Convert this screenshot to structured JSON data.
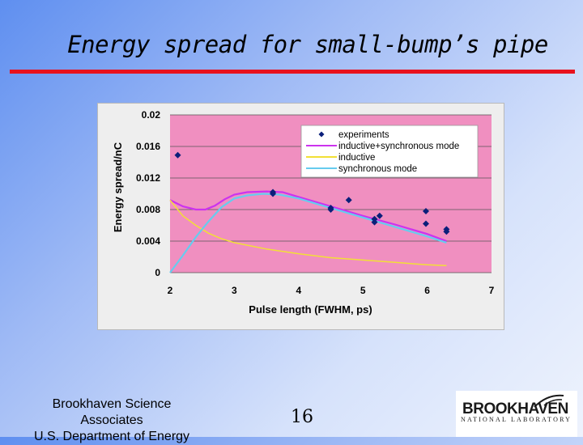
{
  "slide": {
    "title": "Energy spread for small-bump’s pipe",
    "footer_line1": "Brookhaven Science",
    "footer_line2": "Associates",
    "footer_line3": "U.S. Department of Energy",
    "page_number": "16",
    "logo_main": "BROOKHAVEN",
    "logo_sub": "NATIONAL LABORATORY"
  },
  "colors": {
    "title_rule": "#e8121e",
    "plot_background": "#f08fc0",
    "experiments": "#0b1f7a",
    "inductive_synchronous": "#cc33ee",
    "inductive": "#f2e035",
    "synchronous": "#66ccee"
  },
  "chart_data": {
    "type": "scatter",
    "title": "",
    "xlabel": "Pulse length (FWHM, ps)",
    "ylabel": "Energy spread/nC",
    "xlim": [
      2,
      7
    ],
    "ylim": [
      0,
      0.02
    ],
    "x_ticks": [
      "2",
      "3",
      "4",
      "5",
      "6",
      "7"
    ],
    "y_ticks": [
      "0",
      "0.004",
      "0.008",
      "0.012",
      "0.016",
      "0.02"
    ],
    "grid": "horizontal",
    "legend_position": "top-right",
    "series": [
      {
        "name": "experiments",
        "kind": "markers",
        "color": "#0b1f7a",
        "points": [
          [
            2.12,
            0.0149
          ],
          [
            3.6,
            0.0102
          ],
          [
            3.6,
            0.01
          ],
          [
            4.5,
            0.0082
          ],
          [
            4.5,
            0.008
          ],
          [
            4.78,
            0.0092
          ],
          [
            5.18,
            0.0068
          ],
          [
            5.18,
            0.0064
          ],
          [
            5.26,
            0.0072
          ],
          [
            5.98,
            0.0078
          ],
          [
            5.98,
            0.0062
          ],
          [
            6.3,
            0.0055
          ],
          [
            6.3,
            0.0052
          ]
        ]
      },
      {
        "name": "inductive+synchronous mode",
        "kind": "line",
        "color": "#cc33ee",
        "points": [
          [
            2.0,
            0.0092
          ],
          [
            2.2,
            0.0084
          ],
          [
            2.4,
            0.008
          ],
          [
            2.55,
            0.008
          ],
          [
            2.7,
            0.0085
          ],
          [
            2.85,
            0.0093
          ],
          [
            3.0,
            0.0099
          ],
          [
            3.2,
            0.0102
          ],
          [
            3.5,
            0.0103
          ],
          [
            3.75,
            0.0102
          ],
          [
            4.0,
            0.0096
          ],
          [
            4.5,
            0.0084
          ],
          [
            5.0,
            0.0072
          ],
          [
            5.5,
            0.0061
          ],
          [
            6.0,
            0.0049
          ],
          [
            6.3,
            0.004
          ]
        ]
      },
      {
        "name": "inductive",
        "kind": "line",
        "color": "#f2e035",
        "points": [
          [
            2.0,
            0.0092
          ],
          [
            2.2,
            0.0072
          ],
          [
            2.4,
            0.006
          ],
          [
            2.6,
            0.005
          ],
          [
            2.8,
            0.0043
          ],
          [
            3.0,
            0.0038
          ],
          [
            3.5,
            0.003
          ],
          [
            4.0,
            0.0024
          ],
          [
            4.5,
            0.0019
          ],
          [
            5.0,
            0.0016
          ],
          [
            5.5,
            0.0013
          ],
          [
            6.0,
            0.001
          ],
          [
            6.3,
            0.0009
          ]
        ]
      },
      {
        "name": "synchronous mode",
        "kind": "line",
        "color": "#66ccee",
        "points": [
          [
            2.0,
            0.0
          ],
          [
            2.2,
            0.0022
          ],
          [
            2.4,
            0.0045
          ],
          [
            2.6,
            0.0065
          ],
          [
            2.8,
            0.0083
          ],
          [
            3.0,
            0.0094
          ],
          [
            3.2,
            0.0098
          ],
          [
            3.45,
            0.01
          ],
          [
            3.7,
            0.0099
          ],
          [
            4.0,
            0.0094
          ],
          [
            4.5,
            0.0082
          ],
          [
            5.0,
            0.007
          ],
          [
            5.5,
            0.0058
          ],
          [
            6.0,
            0.0046
          ],
          [
            6.3,
            0.0038
          ]
        ]
      }
    ]
  }
}
